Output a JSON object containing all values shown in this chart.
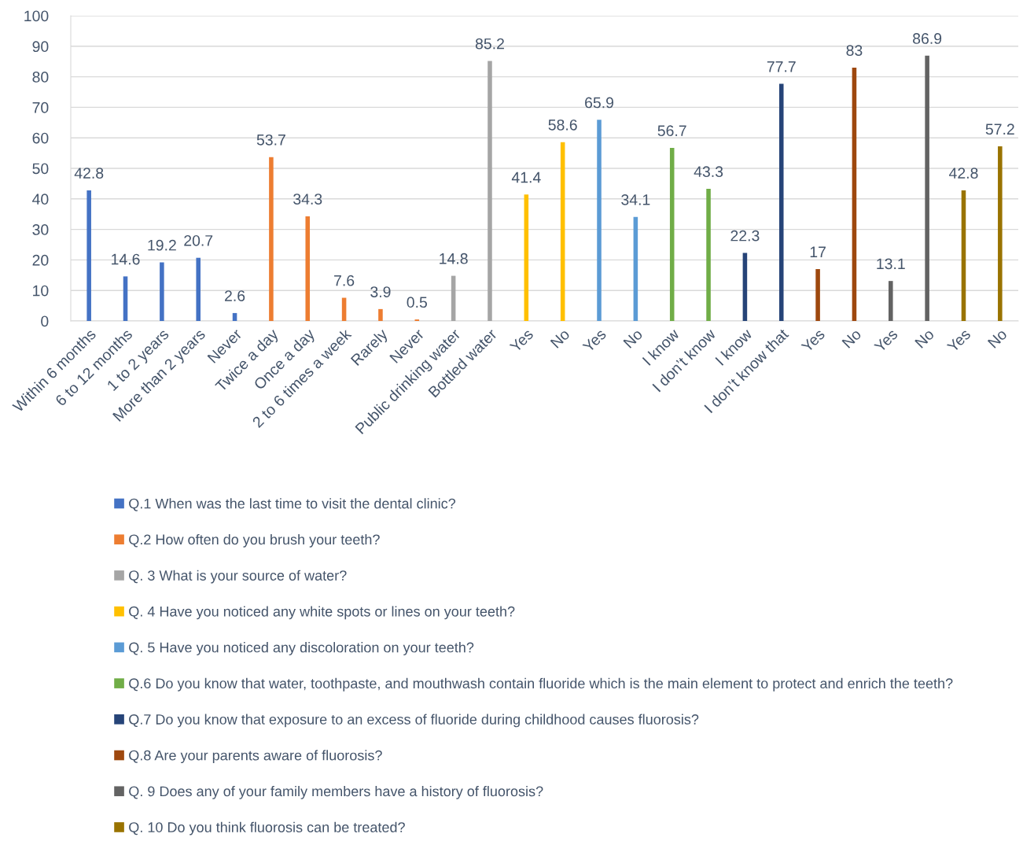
{
  "chart_data": {
    "type": "bar",
    "categories": [
      "Within 6 months",
      "6 to 12 months",
      "1 to 2 years",
      "More than 2 years",
      "Never",
      "Twice a day",
      "Once a day",
      "2 to 6 times a week",
      "Rarely",
      "Never",
      "Public drinking water",
      "Bottled water",
      "Yes",
      "No",
      "Yes",
      "No",
      "I know",
      "I don’t know",
      "I know",
      "I don’t know that",
      "Yes",
      "No",
      "Yes",
      "No",
      "Yes",
      "No"
    ],
    "series": [
      {
        "name": "Q.1 When was the last time to visit the dental clinic?",
        "color": "#4472c4",
        "values": [
          42.8,
          14.6,
          19.2,
          20.7,
          2.6,
          null,
          null,
          null,
          null,
          null,
          null,
          null,
          null,
          null,
          null,
          null,
          null,
          null,
          null,
          null,
          null,
          null,
          null,
          null,
          null,
          null
        ]
      },
      {
        "name": "Q.2 How often do you brush your teeth?",
        "color": "#ed7d31",
        "values": [
          null,
          null,
          null,
          null,
          null,
          53.7,
          34.3,
          7.6,
          3.9,
          0.5,
          null,
          null,
          null,
          null,
          null,
          null,
          null,
          null,
          null,
          null,
          null,
          null,
          null,
          null,
          null,
          null
        ]
      },
      {
        "name": "Q. 3 What is your source of water?",
        "color": "#a5a5a5",
        "values": [
          null,
          null,
          null,
          null,
          null,
          null,
          null,
          null,
          null,
          null,
          14.8,
          85.2,
          null,
          null,
          null,
          null,
          null,
          null,
          null,
          null,
          null,
          null,
          null,
          null,
          null,
          null
        ]
      },
      {
        "name": "Q. 4 Have you noticed any white spots or lines on your teeth?",
        "color": "#ffc000",
        "values": [
          null,
          null,
          null,
          null,
          null,
          null,
          null,
          null,
          null,
          null,
          null,
          null,
          41.4,
          58.6,
          null,
          null,
          null,
          null,
          null,
          null,
          null,
          null,
          null,
          null,
          null,
          null
        ]
      },
      {
        "name": "Q. 5 Have you noticed any discoloration on your teeth?",
        "color": "#5b9bd5",
        "values": [
          null,
          null,
          null,
          null,
          null,
          null,
          null,
          null,
          null,
          null,
          null,
          null,
          null,
          null,
          65.9,
          34.1,
          null,
          null,
          null,
          null,
          null,
          null,
          null,
          null,
          null,
          null
        ]
      },
      {
        "name": "Q.6 Do you know that water, toothpaste, and mouthwash contain fluoride which is the main element to protect and enrich the teeth?",
        "color": "#70ad47",
        "values": [
          null,
          null,
          null,
          null,
          null,
          null,
          null,
          null,
          null,
          null,
          null,
          null,
          null,
          null,
          null,
          null,
          56.7,
          43.3,
          null,
          null,
          null,
          null,
          null,
          null,
          null,
          null
        ]
      },
      {
        "name": "Q.7 Do you know that exposure to an excess of fluoride during childhood causes fluorosis?",
        "color": "#264478",
        "values": [
          null,
          null,
          null,
          null,
          null,
          null,
          null,
          null,
          null,
          null,
          null,
          null,
          null,
          null,
          null,
          null,
          null,
          null,
          22.3,
          77.7,
          null,
          null,
          null,
          null,
          null,
          null
        ]
      },
      {
        "name": "Q.8 Are your parents aware of fluorosis?",
        "color": "#9e480e",
        "values": [
          null,
          null,
          null,
          null,
          null,
          null,
          null,
          null,
          null,
          null,
          null,
          null,
          null,
          null,
          null,
          null,
          null,
          null,
          null,
          null,
          17,
          83,
          null,
          null,
          null,
          null
        ]
      },
      {
        "name": "Q. 9 Does any of your family members have a history of fluorosis?",
        "color": "#636363",
        "values": [
          null,
          null,
          null,
          null,
          null,
          null,
          null,
          null,
          null,
          null,
          null,
          null,
          null,
          null,
          null,
          null,
          null,
          null,
          null,
          null,
          null,
          null,
          13.1,
          86.9,
          null,
          null
        ]
      },
      {
        "name": "Q. 10 Do you think fluorosis can be treated?",
        "color": "#997300",
        "values": [
          null,
          null,
          null,
          null,
          null,
          null,
          null,
          null,
          null,
          null,
          null,
          null,
          null,
          null,
          null,
          null,
          null,
          null,
          null,
          null,
          null,
          null,
          null,
          null,
          42.8,
          57.2
        ]
      }
    ],
    "ylim": [
      0,
      100
    ],
    "yticks": [
      0,
      10,
      20,
      30,
      40,
      50,
      60,
      70,
      80,
      90,
      100
    ],
    "grid": "y",
    "legend": "bottom",
    "data_labels": true
  }
}
